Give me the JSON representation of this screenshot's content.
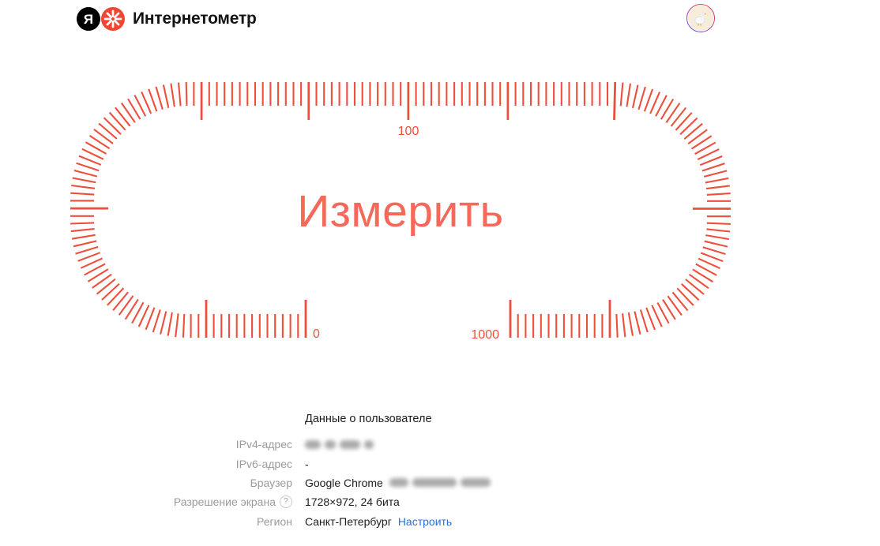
{
  "header": {
    "brand": "Интернетометр",
    "logo_letter": "Я"
  },
  "avatar": {
    "icon": "goose-avatar"
  },
  "gauge": {
    "button_label": "Измерить",
    "scale_min": "0",
    "scale_mid": "100",
    "scale_max": "1000",
    "tick_color": "#ed4f3d",
    "button_color": "#f4695a"
  },
  "user_data": {
    "title": "Данные о пользователе",
    "rows": [
      {
        "id": "ipv4",
        "label": "IPv4-адрес",
        "value": "",
        "redacted": true
      },
      {
        "id": "ipv6",
        "label": "IPv6-адрес",
        "value": "-"
      },
      {
        "id": "browser",
        "label": "Браузер",
        "value": "Google Chrome",
        "redacted": true
      },
      {
        "id": "resolution",
        "label": "Разрешение экрана",
        "value": "1728×972, 24 бита",
        "help": true
      },
      {
        "id": "region",
        "label": "Регион",
        "value": "Санкт-Петербург",
        "link": "Настроить"
      }
    ]
  },
  "colors": {
    "link_blue": "#2b6fe0",
    "logo_red": "#ef4734"
  }
}
